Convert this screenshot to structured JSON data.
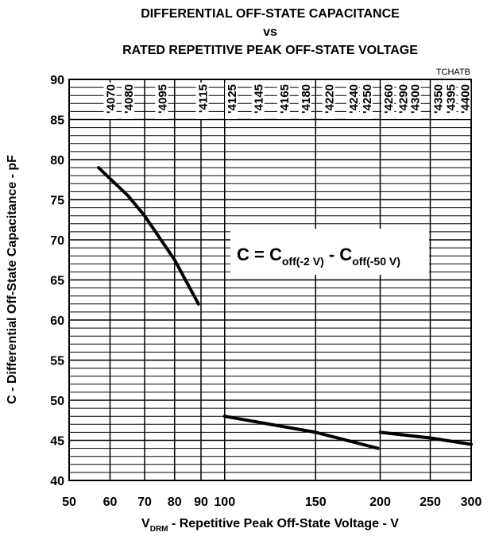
{
  "chart_data": {
    "type": "line",
    "title": [
      "DIFFERENTIAL OFF-STATE CAPACITANCE",
      "vs",
      "RATED REPETITIVE PEAK OFF-STATE VOLTAGE"
    ],
    "figure_code": "TCHATB",
    "xlabel": {
      "main": "V",
      "sub": "DRM",
      "rest": " - Repetitive Peak Off-State Voltage - V"
    },
    "ylabel": "C - Differential Off-State Capacitance - pF",
    "xscale": "log",
    "xlim": [
      50,
      300
    ],
    "ylim": [
      40,
      90
    ],
    "xticks": [
      50,
      60,
      70,
      80,
      90,
      100,
      150,
      200,
      250,
      300
    ],
    "yticks": [
      40,
      45,
      50,
      55,
      60,
      65,
      70,
      75,
      80,
      85,
      90
    ],
    "yminor": [
      41,
      42,
      43,
      44,
      46,
      47,
      48,
      49,
      51,
      52,
      53,
      54,
      56,
      57,
      58,
      59,
      61,
      62,
      63,
      64,
      66,
      67,
      68,
      69,
      71,
      72,
      73,
      74,
      76,
      77,
      78,
      79,
      81,
      82,
      83,
      84,
      86,
      87,
      88,
      89
    ],
    "grid": true,
    "color": "#000000",
    "series": [
      {
        "x": [
          57,
          65,
          70,
          80,
          89
        ],
        "values": [
          79,
          75.5,
          73,
          67.5,
          62
        ]
      },
      {
        "x": [
          100,
          150,
          198
        ],
        "values": [
          48,
          46,
          44
        ]
      },
      {
        "x": [
          200,
          250,
          300
        ],
        "values": [
          46,
          45.3,
          44.5
        ]
      }
    ],
    "device_labels": [
      {
        "x": 60,
        "label": "'4070"
      },
      {
        "x": 65,
        "label": "'4080"
      },
      {
        "x": 75.5,
        "label": "'4095"
      },
      {
        "x": 90.5,
        "label": "'4115"
      },
      {
        "x": 103,
        "label": "'4125"
      },
      {
        "x": 116,
        "label": "'4145"
      },
      {
        "x": 130,
        "label": "'4165"
      },
      {
        "x": 143,
        "label": "'4180"
      },
      {
        "x": 159,
        "label": "'4220"
      },
      {
        "x": 177,
        "label": "'4240"
      },
      {
        "x": 188,
        "label": "'4250"
      },
      {
        "x": 207,
        "label": "'4260"
      },
      {
        "x": 221,
        "label": "'4290"
      },
      {
        "x": 233,
        "label": "'4300"
      },
      {
        "x": 258,
        "label": "'4350"
      },
      {
        "x": 273,
        "label": "'4395"
      },
      {
        "x": 291,
        "label": "'4400"
      }
    ],
    "formula": {
      "lhs": "C = C",
      "sub1": "off(-2 V)",
      "mid": " - C",
      "sub2": "off(-50 V)"
    }
  }
}
